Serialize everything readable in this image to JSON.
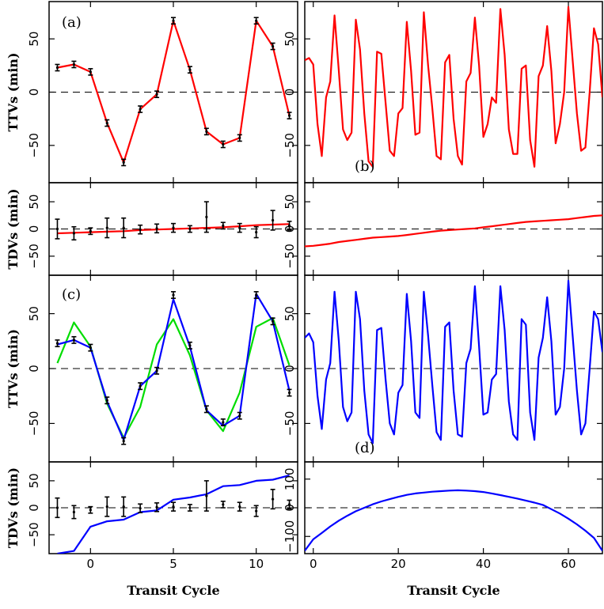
{
  "chart_data": [
    {
      "type": "line",
      "panel": "a",
      "annotation": "(a)",
      "xlim": [
        -2.5,
        12.5
      ],
      "ylim": [
        -85,
        85
      ],
      "yticks": [
        -50,
        0,
        50
      ],
      "xticks": [
        0,
        5,
        10
      ],
      "ylabel": "TTVs (min)",
      "color": "#ff0000",
      "series": [
        {
          "x": [
            -2,
            -1,
            0,
            1,
            2,
            3,
            4,
            5,
            6,
            7,
            8,
            9,
            10,
            11,
            12
          ],
          "values": [
            23,
            26,
            19,
            -29,
            -66,
            -16,
            -2,
            67,
            21,
            -37,
            -49,
            -43,
            67,
            43,
            -22
          ],
          "color": "#ff0000"
        }
      ],
      "observed": {
        "x": [
          -2,
          -1,
          0,
          1,
          2,
          3,
          4,
          5,
          6,
          7,
          8,
          9,
          10,
          11,
          12
        ],
        "values": [
          23,
          26,
          19,
          -29,
          -66,
          -16,
          -2,
          67,
          21,
          -37,
          -49,
          -43,
          67,
          43,
          -22
        ],
        "errors": [
          3,
          3,
          3,
          3,
          3,
          3,
          3,
          3,
          3,
          3,
          3,
          3,
          3,
          3,
          3
        ]
      }
    },
    {
      "type": "line",
      "panel": "b",
      "annotation": "(b)",
      "xlim": [
        -2,
        68
      ],
      "ylim": [
        -85,
        85
      ],
      "yticks": [
        -50,
        0,
        50
      ],
      "xticks": [
        0,
        20,
        40,
        60
      ],
      "series": [
        {
          "x": [
            -2,
            -1,
            0,
            1,
            2,
            3,
            4,
            5,
            6,
            7,
            8,
            9,
            10,
            11,
            12,
            13,
            14,
            15,
            16,
            17,
            18,
            19,
            20,
            21,
            22,
            23,
            24,
            25,
            26,
            27,
            28,
            29,
            30,
            31,
            32,
            33,
            34,
            35,
            36,
            37,
            38,
            39,
            40,
            41,
            42,
            43,
            44,
            45,
            46,
            47,
            48,
            49,
            50,
            51,
            52,
            53,
            54,
            55,
            56,
            57,
            58,
            59,
            60,
            61,
            62,
            63,
            64,
            65,
            66,
            67,
            68
          ],
          "values": [
            30,
            32,
            26,
            -30,
            -60,
            -5,
            10,
            72,
            20,
            -35,
            -45,
            -38,
            68,
            40,
            -20,
            -65,
            -70,
            38,
            36,
            -10,
            -55,
            -60,
            -20,
            -15,
            66,
            20,
            -40,
            -38,
            75,
            25,
            -15,
            -60,
            -63,
            28,
            35,
            -25,
            -60,
            -68,
            10,
            18,
            70,
            25,
            -42,
            -30,
            -5,
            -10,
            78,
            35,
            -35,
            -58,
            -58,
            22,
            25,
            -45,
            -70,
            15,
            25,
            62,
            20,
            -48,
            -30,
            0,
            80,
            30,
            -20,
            -55,
            -52,
            0,
            60,
            45,
            -5
          ],
          "color": "#ff0000"
        }
      ]
    },
    {
      "type": "line",
      "panel": "a-tdv",
      "xlim": [
        -2.5,
        12.5
      ],
      "ylim": [
        -85,
        85
      ],
      "yticks": [
        -50,
        0,
        50
      ],
      "xticks": [
        0,
        5,
        10
      ],
      "ylabel": "TDVs (min)",
      "series": [
        {
          "x": [
            -2,
            -1,
            0,
            1,
            2,
            3,
            4,
            5,
            6,
            7,
            8,
            9,
            10,
            11,
            12
          ],
          "values": [
            -8,
            -7,
            -6,
            -5,
            -4,
            -2,
            -1,
            0,
            1,
            2,
            3,
            5,
            7,
            8,
            9
          ],
          "color": "#ff0000"
        }
      ],
      "observed": {
        "x": [
          -2,
          -1,
          0,
          1,
          2,
          3,
          4,
          5,
          6,
          7,
          8,
          9,
          10,
          11,
          12
        ],
        "values": [
          0,
          -8,
          -4,
          2,
          2,
          -1,
          1,
          2,
          0,
          22,
          6,
          2,
          -6,
          16,
          6
        ],
        "errors": [
          18,
          12,
          6,
          18,
          18,
          8,
          8,
          8,
          6,
          28,
          6,
          8,
          10,
          18,
          8
        ]
      }
    },
    {
      "type": "line",
      "panel": "b-tdv",
      "xlim": [
        -2,
        68
      ],
      "ylim": [
        -85,
        85
      ],
      "yticks": [
        -50,
        0,
        50
      ],
      "xticks": [
        0,
        20,
        40,
        60
      ],
      "series": [
        {
          "x": [
            -2,
            0,
            2,
            4,
            6,
            8,
            10,
            12,
            14,
            16,
            18,
            20,
            22,
            24,
            26,
            28,
            30,
            32,
            34,
            36,
            38,
            40,
            42,
            44,
            46,
            48,
            50,
            52,
            54,
            56,
            58,
            60,
            62,
            64,
            66,
            68
          ],
          "values": [
            -32,
            -31,
            -29,
            -27,
            -24,
            -22,
            -20,
            -18,
            -16,
            -15,
            -14,
            -13,
            -11,
            -9,
            -7,
            -5,
            -3,
            -2,
            -1,
            0,
            1,
            3,
            5,
            7,
            9,
            11,
            13,
            14,
            15,
            16,
            17,
            18,
            20,
            22,
            24,
            25
          ],
          "color": "#ff0000"
        }
      ]
    },
    {
      "type": "line",
      "panel": "c",
      "annotation": "(c)",
      "xlim": [
        -2.5,
        12.5
      ],
      "ylim": [
        -85,
        85
      ],
      "yticks": [
        -50,
        0,
        50
      ],
      "xticks": [
        0,
        5,
        10
      ],
      "ylabel": "TTVs (min)",
      "series": [
        {
          "x": [
            -2,
            -1,
            0,
            1,
            2,
            3,
            4,
            5,
            6,
            7,
            8,
            9,
            10,
            11,
            12
          ],
          "values": [
            5,
            42,
            20,
            -32,
            -63,
            -35,
            22,
            45,
            12,
            -38,
            -57,
            -22,
            38,
            46,
            3
          ],
          "color": "#00dd00"
        },
        {
          "x": [
            -2,
            -1,
            0,
            1,
            2,
            3,
            4,
            5,
            6,
            7,
            8,
            9,
            10,
            11,
            12
          ],
          "values": [
            22,
            26,
            19,
            -30,
            -65,
            -16,
            -2,
            63,
            20,
            -38,
            -52,
            -43,
            68,
            43,
            -20
          ],
          "color": "#0000ff"
        }
      ],
      "observed": {
        "x": [
          -2,
          -1,
          0,
          1,
          2,
          3,
          4,
          5,
          6,
          7,
          8,
          9,
          10,
          11,
          12
        ],
        "values": [
          23,
          26,
          19,
          -29,
          -66,
          -16,
          -2,
          67,
          21,
          -37,
          -49,
          -43,
          67,
          43,
          -22
        ],
        "errors": [
          3,
          3,
          3,
          3,
          3,
          3,
          3,
          3,
          3,
          3,
          3,
          3,
          3,
          3,
          3
        ]
      }
    },
    {
      "type": "line",
      "panel": "d",
      "annotation": "(d)",
      "xlim": [
        -2,
        68
      ],
      "ylim": [
        -85,
        85
      ],
      "yticks": [
        -50,
        0,
        50
      ],
      "xticks": [
        0,
        20,
        40,
        60
      ],
      "series": [
        {
          "x": [
            -2,
            -1,
            0,
            1,
            2,
            3,
            4,
            5,
            6,
            7,
            8,
            9,
            10,
            11,
            12,
            13,
            14,
            15,
            16,
            17,
            18,
            19,
            20,
            21,
            22,
            23,
            24,
            25,
            26,
            27,
            28,
            29,
            30,
            31,
            32,
            33,
            34,
            35,
            36,
            37,
            38,
            39,
            40,
            41,
            42,
            43,
            44,
            45,
            46,
            47,
            48,
            49,
            50,
            51,
            52,
            53,
            54,
            55,
            56,
            57,
            58,
            59,
            60,
            61,
            62,
            63,
            64,
            65,
            66,
            67,
            68
          ],
          "values": [
            28,
            32,
            24,
            -25,
            -55,
            -10,
            5,
            70,
            25,
            -35,
            -48,
            -40,
            70,
            45,
            -20,
            -60,
            -68,
            35,
            37,
            -10,
            -50,
            -60,
            -22,
            -15,
            68,
            25,
            -40,
            -45,
            70,
            30,
            -15,
            -58,
            -65,
            38,
            42,
            -20,
            -60,
            -62,
            5,
            18,
            75,
            20,
            -42,
            -40,
            -10,
            -5,
            75,
            35,
            -30,
            -60,
            -65,
            45,
            40,
            -40,
            -65,
            10,
            28,
            65,
            25,
            -42,
            -35,
            0,
            80,
            30,
            -20,
            -60,
            -50,
            0,
            52,
            45,
            15
          ],
          "color": "#0000ff"
        }
      ]
    },
    {
      "type": "line",
      "panel": "c-tdv",
      "xlim": [
        -2.5,
        12.5
      ],
      "ylim": [
        -85,
        85
      ],
      "yticks": [
        -50,
        0,
        50
      ],
      "xticks": [
        0,
        5,
        10
      ],
      "ylabel": "TDVs (min)",
      "series": [
        {
          "x": [
            -2,
            -1,
            0,
            1,
            2,
            3,
            4,
            5,
            6,
            7,
            8,
            9,
            10,
            11,
            12
          ],
          "values": [
            -85,
            -80,
            -35,
            -25,
            -22,
            -8,
            -5,
            15,
            19,
            25,
            40,
            42,
            50,
            52,
            60
          ],
          "color": "#0000ff"
        }
      ],
      "observed": {
        "x": [
          -2,
          -1,
          0,
          1,
          2,
          3,
          4,
          5,
          6,
          7,
          8,
          9,
          10,
          11,
          12
        ],
        "values": [
          0,
          -8,
          -4,
          2,
          2,
          -1,
          1,
          2,
          0,
          22,
          6,
          2,
          -6,
          16,
          6
        ],
        "errors": [
          18,
          12,
          6,
          18,
          18,
          8,
          8,
          8,
          6,
          28,
          6,
          8,
          10,
          18,
          8
        ]
      }
    },
    {
      "type": "line",
      "panel": "d-tdv",
      "xlim": [
        -2,
        68
      ],
      "ylim": [
        -160,
        160
      ],
      "yticks": [
        -100,
        0,
        100
      ],
      "xticks": [
        0,
        20,
        40,
        60
      ],
      "series": [
        {
          "x": [
            -2,
            0,
            2,
            4,
            6,
            8,
            10,
            12,
            14,
            16,
            18,
            20,
            22,
            24,
            26,
            28,
            30,
            32,
            34,
            36,
            38,
            40,
            42,
            44,
            46,
            48,
            50,
            52,
            54,
            56,
            58,
            60,
            62,
            64,
            66,
            68
          ],
          "values": [
            -150,
            -110,
            -88,
            -65,
            -45,
            -28,
            -12,
            0,
            12,
            22,
            30,
            38,
            45,
            50,
            53,
            56,
            58,
            60,
            61,
            60,
            58,
            55,
            50,
            44,
            38,
            32,
            25,
            18,
            10,
            -5,
            -20,
            -38,
            -58,
            -80,
            -105,
            -150
          ],
          "color": "#0000ff"
        }
      ]
    }
  ],
  "xlabel": "Transit Cycle"
}
